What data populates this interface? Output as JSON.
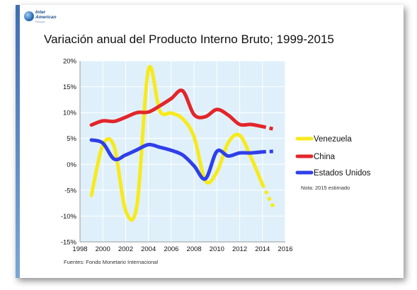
{
  "logo": {
    "line1": "Inter",
    "line2": "American",
    "tagline": "Dialogue"
  },
  "title": "Variación anual del Producto Interno Bruto; 1999-2015",
  "source": "Fuentes: Fondo Monetario Internacional",
  "note": "Nota: 2015 estimado",
  "colors": {
    "plot_bg": "#dff0fb",
    "grid": "#ffffff",
    "venezuela": "#f7ea1c",
    "china": "#e2262a",
    "estados_unidos": "#2f3fea"
  },
  "chart_data": {
    "type": "line",
    "title": "Variación anual del Producto Interno Bruto; 1999-2015",
    "xlabel": "",
    "ylabel": "",
    "xlim": [
      1998,
      2016
    ],
    "ylim": [
      -15,
      20
    ],
    "x_ticks": [
      "1998",
      "2000",
      "2002",
      "2004",
      "2006",
      "2008",
      "2010",
      "2012",
      "2014",
      "2016"
    ],
    "y_ticks": [
      "-15%",
      "-10%",
      "-5%",
      "0%",
      "5%",
      "10%",
      "15%",
      "20%"
    ],
    "grid": true,
    "legend_position": "right",
    "x": [
      1999,
      2000,
      2001,
      2002,
      2003,
      2004,
      2005,
      2006,
      2007,
      2008,
      2009,
      2010,
      2011,
      2012,
      2013,
      2014,
      2015
    ],
    "estimated_x": [
      2015
    ],
    "series": [
      {
        "name": "Venezuela",
        "values": [
          -6.0,
          3.7,
          3.4,
          -8.9,
          -7.8,
          18.3,
          10.3,
          9.9,
          8.8,
          5.3,
          -3.2,
          -1.5,
          4.2,
          5.6,
          1.3,
          -3.9,
          -8.5
        ]
      },
      {
        "name": "China",
        "values": [
          7.6,
          8.4,
          8.3,
          9.1,
          10.0,
          10.1,
          11.3,
          12.7,
          14.2,
          9.6,
          9.2,
          10.6,
          9.5,
          7.7,
          7.7,
          7.3,
          6.8
        ]
      },
      {
        "name": "Estados Unidos",
        "values": [
          4.7,
          4.1,
          1.0,
          1.8,
          2.8,
          3.8,
          3.3,
          2.7,
          1.8,
          -0.3,
          -2.8,
          2.5,
          1.6,
          2.2,
          2.2,
          2.4,
          2.5
        ]
      }
    ]
  }
}
